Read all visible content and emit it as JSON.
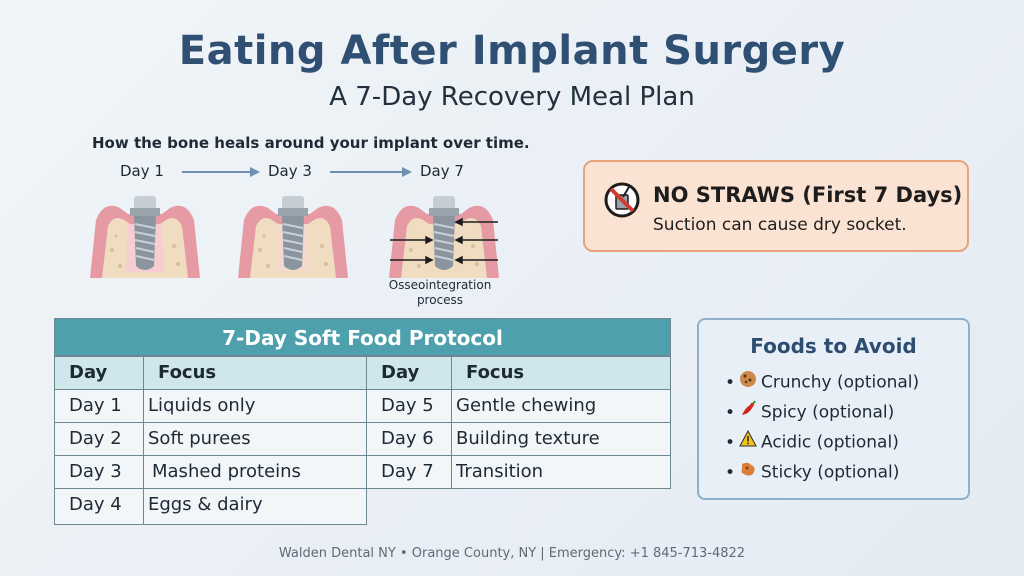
{
  "header": {
    "title": "Eating After Implant Surgery",
    "subtitle": "A 7-Day Recovery Meal Plan"
  },
  "healing": {
    "caption": "How the bone heals around your implant over time.",
    "stages": [
      "Day 1",
      "Day 3",
      "Day 7"
    ],
    "process_label_line1": "Osseointegration",
    "process_label_line2": "process"
  },
  "warning": {
    "title": "NO STRAWS (First 7 Days)",
    "text": "Suction can cause dry socket.",
    "icon": "no-straw-icon"
  },
  "protocol": {
    "title": "7-Day Soft Food Protocol",
    "headers": [
      "Day",
      "Focus",
      "Day",
      "Focus"
    ],
    "rows": [
      {
        "day": "Day 1",
        "focus": "Liquids only"
      },
      {
        "day": "Day 2",
        "focus": "Soft purees"
      },
      {
        "day": "Day 3",
        "focus": "Mashed proteins"
      },
      {
        "day": "Day 4",
        "focus": "Eggs & dairy"
      },
      {
        "day": "Day 5",
        "focus": "Gentle chewing"
      },
      {
        "day": "Day 6",
        "focus": "Building texture"
      },
      {
        "day": "Day 7",
        "focus": "Transition"
      }
    ]
  },
  "avoid": {
    "title": "Foods to Avoid",
    "items": [
      {
        "label": "Crunchy (optional)",
        "icon": "cookie-icon"
      },
      {
        "label": "Spicy (optional)",
        "icon": "chili-pepper-icon"
      },
      {
        "label": "Acidic (optional)",
        "icon": "warning-icon"
      },
      {
        "label": "Sticky (optional)",
        "icon": "sticky-food-icon"
      }
    ]
  },
  "footer": {
    "text": "Walden Dental NY • Orange County, NY | Emergency: +1 845-713-4822"
  },
  "colors": {
    "title": "#2f4f73",
    "table_header": "#4ea0ad",
    "warning_bg": "#fbe3d3",
    "warning_border": "#e8a37a"
  }
}
